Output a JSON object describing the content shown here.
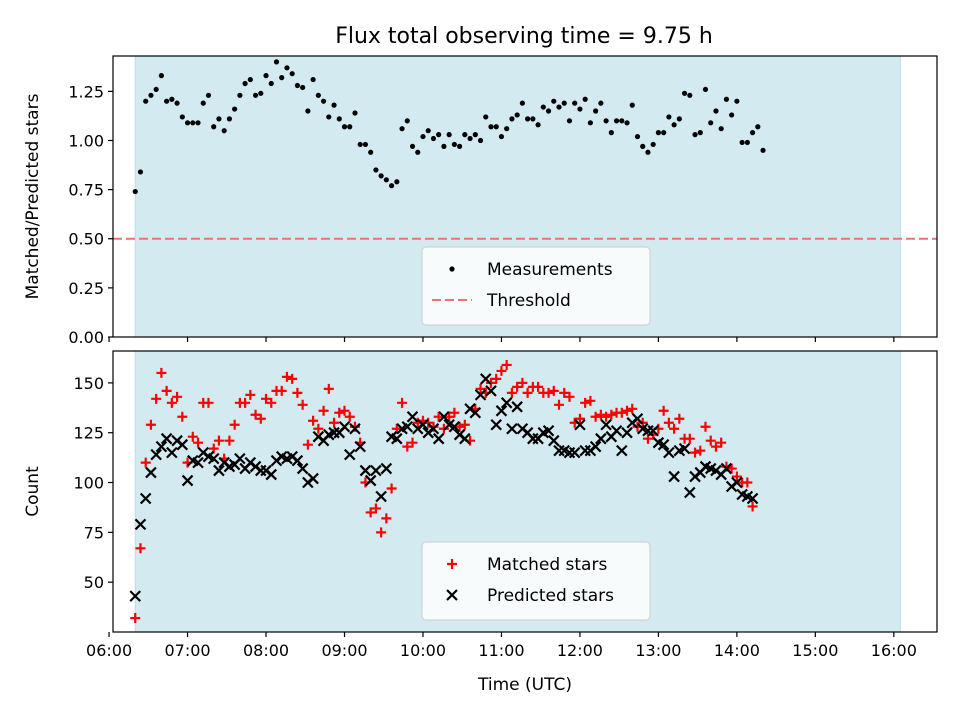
{
  "title": "Flux total observing time = 9.75 h",
  "chart_data": [
    {
      "type": "scatter",
      "ylabel": "Matched/Predicted stars",
      "xlabel": "",
      "xlim": [
        "06:03",
        "16:33"
      ],
      "ylim": [
        0,
        1.43
      ],
      "yticks": [
        0.0,
        0.25,
        0.5,
        0.75,
        1.0,
        1.25
      ],
      "ytick_labels": [
        "0.00",
        "0.25",
        "0.50",
        "0.75",
        "1.00",
        "1.25"
      ],
      "shaded_interval": [
        "06:20",
        "16:05"
      ],
      "shade_color": "#d4eaf1",
      "grid": false,
      "legend_position": "lower-center",
      "threshold": {
        "name": "Threshold",
        "value": 0.5,
        "color": "#f07171",
        "style": "dashed"
      },
      "series": [
        {
          "name": "Measurements",
          "color": "#000000",
          "marker": "dot",
          "x_start": "06:20",
          "x_step_minutes": 4,
          "y": [
            0.74,
            0.84,
            1.2,
            1.23,
            1.26,
            1.33,
            1.2,
            1.21,
            1.19,
            1.12,
            1.09,
            1.09,
            1.09,
            1.19,
            1.23,
            1.07,
            1.11,
            1.05,
            1.11,
            1.16,
            1.23,
            1.29,
            1.31,
            1.23,
            1.24,
            1.33,
            1.29,
            1.4,
            1.32,
            1.37,
            1.34,
            1.28,
            1.27,
            1.15,
            1.31,
            1.23,
            1.2,
            1.12,
            1.18,
            1.11,
            1.07,
            1.07,
            1.14,
            0.98,
            0.98,
            0.94,
            0.85,
            0.82,
            0.8,
            0.77,
            0.79,
            1.06,
            1.1,
            0.97,
            0.94,
            1.02,
            1.05,
            1.01,
            1.03,
            0.97,
            1.03,
            0.98,
            0.97,
            1.03,
            1.01,
            1.03,
            1.0,
            1.12,
            1.07,
            1.07,
            1.02,
            1.06,
            1.11,
            1.13,
            1.19,
            1.11,
            1.11,
            1.08,
            1.17,
            1.15,
            1.2,
            1.17,
            1.19,
            1.1,
            1.19,
            1.16,
            1.21,
            1.09,
            1.15,
            1.19,
            1.1,
            1.04,
            1.1,
            1.1,
            1.09,
            1.18,
            1.02,
            0.97,
            0.94,
            0.98,
            1.04,
            1.04,
            1.12,
            1.08,
            1.11,
            1.24,
            1.23,
            1.03,
            1.04,
            1.26,
            1.09,
            1.15,
            1.06,
            1.21,
            1.13,
            1.2,
            0.99,
            0.99,
            1.04,
            1.07,
            0.95
          ]
        }
      ]
    },
    {
      "type": "scatter",
      "ylabel": "Count",
      "xlabel": "Time (UTC)",
      "xlim": [
        "06:03",
        "16:33"
      ],
      "ylim": [
        25,
        166
      ],
      "yticks": [
        50,
        75,
        100,
        125,
        150
      ],
      "ytick_labels": [
        "50",
        "75",
        "100",
        "125",
        "150"
      ],
      "x_ticks": [
        "06:00",
        "07:00",
        "08:00",
        "09:00",
        "10:00",
        "11:00",
        "12:00",
        "13:00",
        "14:00",
        "15:00",
        "16:00"
      ],
      "shaded_interval": [
        "06:20",
        "16:05"
      ],
      "shade_color": "#d4eaf1",
      "grid": false,
      "legend_position": "lower-center",
      "series": [
        {
          "name": "Matched stars",
          "color": "#ff0000",
          "marker": "plus",
          "x_start": "06:20",
          "x_step_minutes": 4,
          "y": [
            32,
            67,
            110,
            129,
            142,
            155,
            146,
            140,
            143,
            133,
            110,
            123,
            120,
            140,
            140,
            117,
            121,
            112,
            121,
            129,
            140,
            140,
            144,
            134,
            132,
            142,
            140,
            146,
            146,
            153,
            152,
            145,
            139,
            119,
            131,
            127,
            136,
            147,
            130,
            135,
            136,
            133,
            128,
            120,
            100,
            85,
            87,
            75,
            82,
            97,
            127,
            140,
            118,
            120,
            130,
            131,
            130,
            128,
            133,
            127,
            133,
            135,
            128,
            129,
            121,
            137,
            147,
            145,
            150,
            152,
            156,
            159,
            145,
            148,
            150,
            145,
            148,
            148,
            145,
            145,
            146,
            139,
            145,
            143,
            130,
            132,
            140,
            141,
            133,
            134,
            133,
            134,
            135,
            135,
            136,
            137,
            128,
            130,
            122,
            124,
            127,
            136,
            130,
            127,
            132,
            122,
            122,
            115,
            116,
            128,
            121,
            118,
            120,
            108,
            107,
            103,
            100,
            100,
            88
          ]
        },
        {
          "name": "Predicted stars",
          "color": "#000000",
          "marker": "x",
          "x_start": "06:20",
          "x_step_minutes": 4,
          "y": [
            43,
            79,
            92,
            105,
            114,
            118,
            122,
            115,
            121,
            119,
            101,
            111,
            110,
            115,
            113,
            112,
            106,
            110,
            108,
            109,
            112,
            107,
            110,
            108,
            106,
            106,
            104,
            111,
            113,
            112,
            113,
            111,
            107,
            100,
            102,
            123,
            121,
            124,
            125,
            125,
            128,
            114,
            127,
            118,
            106,
            101,
            106,
            93,
            107,
            123,
            122,
            127,
            128,
            133,
            127,
            129,
            125,
            127,
            122,
            133,
            129,
            128,
            124,
            122,
            137,
            135,
            144,
            152,
            146,
            129,
            136,
            140,
            127,
            138,
            127,
            125,
            122,
            122,
            125,
            126,
            121,
            116,
            116,
            115,
            115,
            129,
            116,
            116,
            118,
            122,
            129,
            123,
            126,
            116,
            125,
            130,
            132,
            127,
            126,
            126,
            120,
            119,
            115,
            103,
            116,
            117,
            95,
            103,
            105,
            108,
            107,
            106,
            104,
            107,
            98,
            100,
            94,
            93,
            92
          ]
        }
      ]
    }
  ]
}
